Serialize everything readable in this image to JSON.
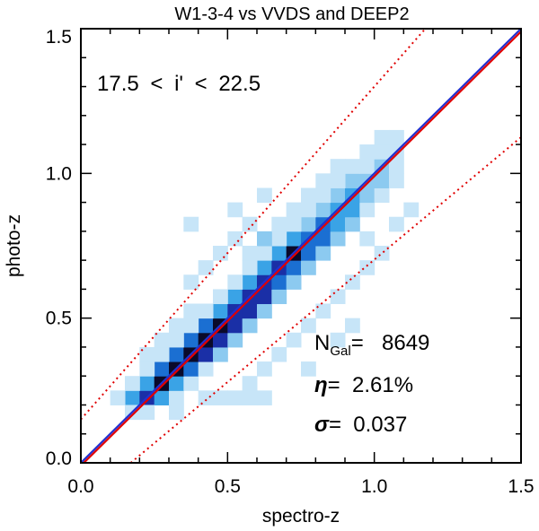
{
  "chart_data": {
    "type": "heatmap",
    "title": "W1-3-4 vs VVDS and DEEP2",
    "xlabel": "spectro-z",
    "ylabel": "photo-z",
    "xlim": [
      0.0,
      1.5
    ],
    "ylim": [
      0.0,
      1.5
    ],
    "x_ticks": [
      0.0,
      0.5,
      1.0,
      1.5
    ],
    "y_ticks": [
      0.0,
      0.5,
      1.0,
      1.5
    ],
    "x_tick_labels": [
      "0.0",
      "0.5",
      "1.0",
      "1.5"
    ],
    "y_tick_labels": [
      "0.0",
      "0.5",
      "1.0",
      "1.5"
    ],
    "bin_size": 0.05,
    "magnitude_range_label": "17.5 < i' < 22.5",
    "stats": {
      "ngal_label": "N",
      "ngal_subscript": "Gal",
      "ngal_equals": "=",
      "ngal_value": "8649",
      "eta_symbol": "η",
      "eta_value": "=  2.61%",
      "sigma_symbol": "σ",
      "sigma_value": "=  0.037"
    },
    "lines": [
      {
        "name": "one-to-one",
        "color": "#2030d0",
        "style": "solid",
        "points": [
          [
            0.0,
            0.0
          ],
          [
            1.5,
            1.5
          ]
        ]
      },
      {
        "name": "bias-fit",
        "color": "#e00000",
        "style": "solid",
        "points": [
          [
            0.0,
            -0.01
          ],
          [
            1.5,
            1.49
          ]
        ]
      },
      {
        "name": "outlier-upper",
        "color": "#e00000",
        "style": "dotted",
        "points": [
          [
            0.0,
            0.15
          ],
          [
            1.5,
            1.875
          ]
        ]
      },
      {
        "name": "outlier-lower",
        "color": "#e00000",
        "style": "dotted",
        "points": [
          [
            0.17,
            0.0
          ],
          [
            1.5,
            1.125
          ]
        ]
      }
    ],
    "color_levels": [
      "#eaf5fc",
      "#c7e5f8",
      "#8ccaf0",
      "#3aa3e6",
      "#1b6fd2",
      "#1a2fa6",
      "#0a0a2a"
    ],
    "cells": [
      [
        0.15,
        0.2,
        3
      ],
      [
        0.2,
        0.2,
        5
      ],
      [
        0.25,
        0.2,
        3
      ],
      [
        0.1,
        0.2,
        1
      ],
      [
        0.3,
        0.2,
        1
      ],
      [
        0.2,
        0.25,
        3
      ],
      [
        0.25,
        0.25,
        6
      ],
      [
        0.3,
        0.25,
        3
      ],
      [
        0.15,
        0.25,
        1
      ],
      [
        0.35,
        0.25,
        1
      ],
      [
        0.25,
        0.3,
        4
      ],
      [
        0.3,
        0.3,
        6
      ],
      [
        0.35,
        0.3,
        4
      ],
      [
        0.2,
        0.3,
        1
      ],
      [
        0.4,
        0.3,
        1
      ],
      [
        0.3,
        0.35,
        4
      ],
      [
        0.35,
        0.35,
        6
      ],
      [
        0.4,
        0.35,
        5
      ],
      [
        0.25,
        0.35,
        1
      ],
      [
        0.45,
        0.35,
        2
      ],
      [
        0.35,
        0.4,
        4
      ],
      [
        0.4,
        0.4,
        6
      ],
      [
        0.45,
        0.4,
        5
      ],
      [
        0.3,
        0.4,
        1
      ],
      [
        0.5,
        0.4,
        2
      ],
      [
        0.4,
        0.45,
        4
      ],
      [
        0.45,
        0.45,
        6
      ],
      [
        0.5,
        0.45,
        5
      ],
      [
        0.35,
        0.45,
        1
      ],
      [
        0.55,
        0.45,
        2
      ],
      [
        0.45,
        0.5,
        3
      ],
      [
        0.5,
        0.5,
        5
      ],
      [
        0.55,
        0.5,
        5
      ],
      [
        0.4,
        0.5,
        1
      ],
      [
        0.6,
        0.5,
        2
      ],
      [
        0.5,
        0.55,
        3
      ],
      [
        0.55,
        0.55,
        5
      ],
      [
        0.6,
        0.55,
        5
      ],
      [
        0.45,
        0.55,
        1
      ],
      [
        0.65,
        0.55,
        2
      ],
      [
        0.55,
        0.6,
        3
      ],
      [
        0.6,
        0.6,
        5
      ],
      [
        0.65,
        0.6,
        4
      ],
      [
        0.5,
        0.6,
        1
      ],
      [
        0.7,
        0.6,
        2
      ],
      [
        0.6,
        0.65,
        3
      ],
      [
        0.65,
        0.65,
        5
      ],
      [
        0.7,
        0.65,
        4
      ],
      [
        0.55,
        0.65,
        1
      ],
      [
        0.75,
        0.65,
        2
      ],
      [
        0.65,
        0.7,
        3
      ],
      [
        0.7,
        0.7,
        6
      ],
      [
        0.75,
        0.7,
        4
      ],
      [
        0.6,
        0.7,
        1
      ],
      [
        0.8,
        0.7,
        2
      ],
      [
        0.7,
        0.75,
        3
      ],
      [
        0.75,
        0.75,
        4
      ],
      [
        0.8,
        0.75,
        4
      ],
      [
        0.65,
        0.75,
        1
      ],
      [
        0.85,
        0.75,
        2
      ],
      [
        0.75,
        0.8,
        2
      ],
      [
        0.8,
        0.8,
        4
      ],
      [
        0.85,
        0.8,
        3
      ],
      [
        0.7,
        0.8,
        1
      ],
      [
        0.9,
        0.8,
        2
      ],
      [
        0.8,
        0.85,
        2
      ],
      [
        0.85,
        0.85,
        3
      ],
      [
        0.9,
        0.85,
        3
      ],
      [
        0.75,
        0.85,
        1
      ],
      [
        0.95,
        0.85,
        1
      ],
      [
        0.85,
        0.9,
        2
      ],
      [
        0.9,
        0.9,
        3
      ],
      [
        0.95,
        0.9,
        2
      ],
      [
        0.8,
        0.9,
        1
      ],
      [
        1.0,
        0.9,
        1
      ],
      [
        0.9,
        0.95,
        2
      ],
      [
        0.95,
        0.95,
        2
      ],
      [
        1.0,
        0.95,
        2
      ],
      [
        0.85,
        0.95,
        1
      ],
      [
        1.05,
        0.95,
        1
      ],
      [
        0.95,
        1.0,
        1
      ],
      [
        1.0,
        1.0,
        2
      ],
      [
        1.05,
        1.0,
        1
      ],
      [
        0.9,
        1.0,
        1
      ],
      [
        1.0,
        1.05,
        1
      ],
      [
        1.05,
        1.05,
        1
      ],
      [
        0.95,
        1.05,
        1
      ],
      [
        1.0,
        1.1,
        1
      ],
      [
        1.05,
        1.1,
        1
      ],
      [
        0.6,
        0.75,
        2
      ],
      [
        0.65,
        0.8,
        1
      ],
      [
        0.7,
        0.85,
        1
      ],
      [
        0.55,
        0.7,
        1
      ],
      [
        0.8,
        0.95,
        1
      ],
      [
        0.85,
        1.0,
        1
      ],
      [
        0.75,
        0.9,
        1
      ],
      [
        0.45,
        0.2,
        1
      ],
      [
        0.5,
        0.2,
        1
      ],
      [
        0.55,
        0.2,
        1
      ],
      [
        0.6,
        0.2,
        1
      ],
      [
        0.4,
        0.2,
        1
      ],
      [
        0.55,
        0.25,
        1
      ],
      [
        0.6,
        0.3,
        1
      ],
      [
        0.65,
        0.35,
        1
      ],
      [
        0.7,
        0.4,
        1
      ],
      [
        0.75,
        0.45,
        1
      ],
      [
        0.8,
        0.5,
        1
      ],
      [
        0.85,
        0.55,
        1
      ],
      [
        0.9,
        0.6,
        1
      ],
      [
        0.95,
        0.65,
        1
      ],
      [
        0.3,
        0.15,
        1
      ],
      [
        0.2,
        0.15,
        1
      ],
      [
        0.35,
        0.6,
        1
      ],
      [
        0.45,
        0.7,
        1
      ],
      [
        0.4,
        0.65,
        1
      ],
      [
        0.5,
        0.75,
        1
      ],
      [
        0.55,
        0.8,
        1
      ],
      [
        0.35,
        0.8,
        1
      ],
      [
        0.5,
        0.85,
        1
      ],
      [
        0.6,
        0.9,
        1
      ],
      [
        0.3,
        0.45,
        1
      ],
      [
        0.25,
        0.4,
        1
      ],
      [
        0.2,
        0.35,
        1
      ],
      [
        0.35,
        0.5,
        1
      ],
      [
        1.05,
        0.8,
        1
      ],
      [
        1.1,
        0.85,
        1
      ],
      [
        0.95,
        0.75,
        1
      ],
      [
        1.0,
        0.7,
        1
      ],
      [
        0.75,
        0.3,
        1
      ],
      [
        0.85,
        0.4,
        1
      ],
      [
        0.9,
        0.45,
        1
      ],
      [
        0.15,
        0.15,
        1
      ]
    ]
  }
}
